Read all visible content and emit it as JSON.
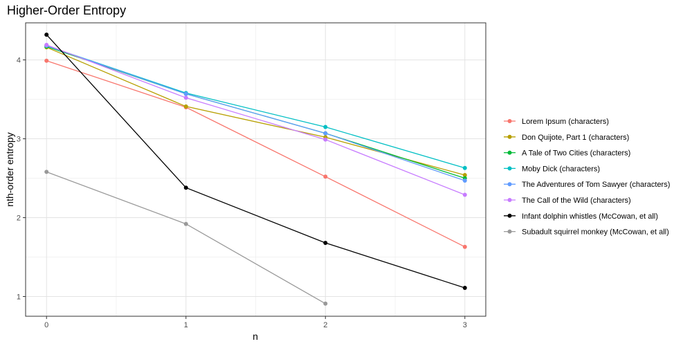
{
  "chart_data": {
    "type": "line",
    "title": "Higher-Order Entropy",
    "xlabel": "n",
    "ylabel": "nth-order entropy",
    "x": [
      0,
      1,
      2,
      3
    ],
    "xlim": [
      -0.15,
      3.15
    ],
    "ylim": [
      0.75,
      4.47
    ],
    "xticks": [
      0,
      1,
      2,
      3
    ],
    "yticks": [
      1,
      2,
      3,
      4
    ],
    "grid": true,
    "legend_position": "right",
    "series": [
      {
        "name": "Lorem Ipsum (characters)",
        "color": "#F8766D",
        "values": [
          3.99,
          3.4,
          2.52,
          1.63
        ]
      },
      {
        "name": "Don Quijote, Part 1 (characters)",
        "color": "#B79F00",
        "values": [
          4.16,
          3.41,
          3.02,
          2.54
        ]
      },
      {
        "name": "A Tale of Two Cities (characters)",
        "color": "#00BA38",
        "values": [
          4.17,
          3.57,
          3.07,
          2.5
        ]
      },
      {
        "name": "Moby Dick (characters)",
        "color": "#00BFC4",
        "values": [
          4.18,
          3.58,
          3.15,
          2.63
        ]
      },
      {
        "name": "The Adventures of Tom Sawyer (characters)",
        "color": "#619CFF",
        "values": [
          4.18,
          3.57,
          3.07,
          2.47
        ]
      },
      {
        "name": "The Call of the Wild (characters)",
        "color": "#C77CFF",
        "values": [
          4.19,
          3.52,
          2.99,
          2.29
        ]
      },
      {
        "name": "Infant dolphin whistles (McCowan, et all)",
        "color": "#000000",
        "values": [
          4.32,
          2.38,
          1.68,
          1.11
        ]
      },
      {
        "name": "Subadult squirrel monkey (McCowan, et all)",
        "color": "#999999",
        "values": [
          2.58,
          1.92,
          0.91,
          null
        ]
      }
    ]
  }
}
